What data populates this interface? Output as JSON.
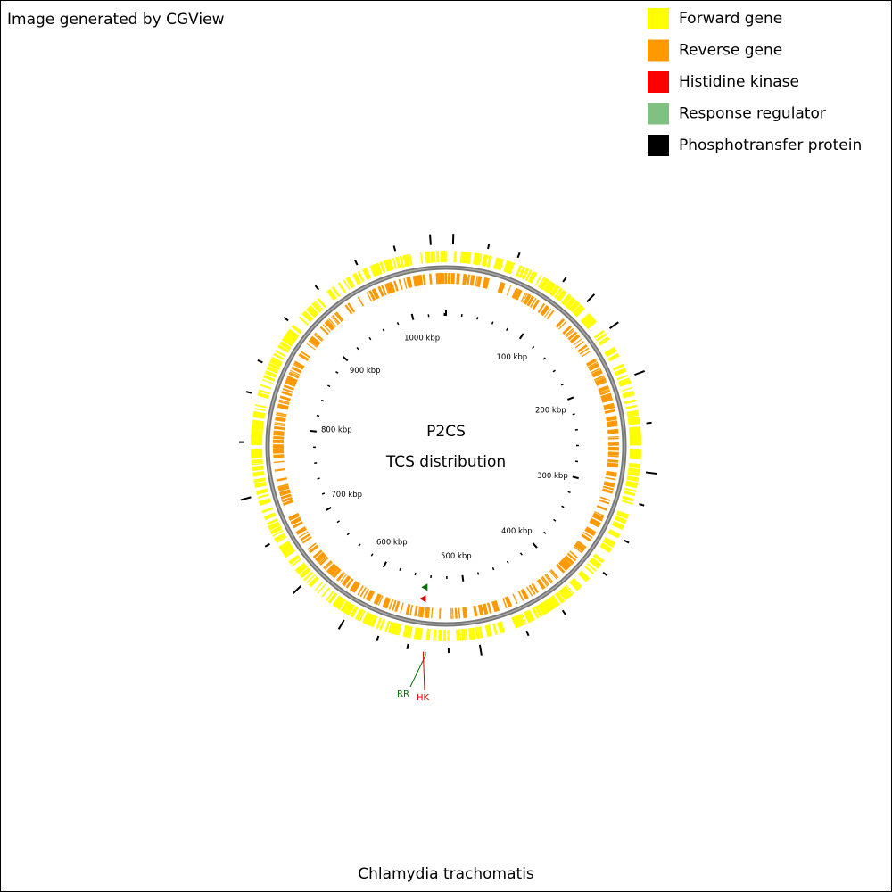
{
  "header": {
    "credit": "Image generated by CGView"
  },
  "legend": [
    {
      "label": "Forward gene",
      "color": "#ffff00"
    },
    {
      "label": "Reverse gene",
      "color": "#ff9900"
    },
    {
      "label": "Histidine kinase",
      "color": "#ff0000"
    },
    {
      "label": "Response regulator",
      "color": "#80c080"
    },
    {
      "label": "Phosphotransfer protein",
      "color": "#000000"
    }
  ],
  "map": {
    "title": "P2CS",
    "subtitle": "TCS distribution",
    "scale_labels": [
      "100 kbp",
      "200 kbp",
      "300 kbp",
      "400 kbp",
      "500 kbp",
      "600 kbp",
      "700 kbp",
      "800 kbp",
      "900 kbp",
      "1000 kbp"
    ],
    "features": [
      {
        "label": "RR",
        "color": "#007000"
      },
      {
        "label": "HK",
        "color": "#e00000"
      }
    ]
  },
  "footer": {
    "organism": "Chlamydia trachomatis"
  }
}
